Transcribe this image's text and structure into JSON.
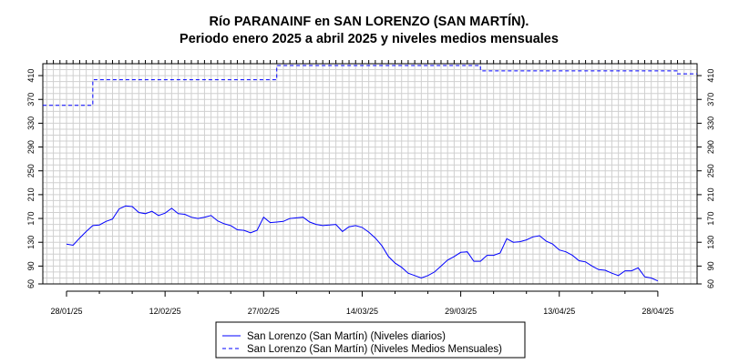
{
  "chart_data": {
    "type": "line",
    "title": "Río PARANAINF en SAN LORENZO (SAN MARTÍN).",
    "subtitle": "Periodo enero 2025 a abril 2025 y niveles medios mensuales",
    "xlabel": "",
    "ylabel": "",
    "x_tick_labels": [
      "28/01/25",
      "12/02/25",
      "27/02/25",
      "14/03/25",
      "29/03/25",
      "13/04/25",
      "28/04/25"
    ],
    "y_ticks": [
      60,
      90,
      130,
      170,
      210,
      250,
      290,
      330,
      370,
      410
    ],
    "ylim": [
      60,
      430
    ],
    "grid": true,
    "legend_position": "bottom-center",
    "series": [
      {
        "name": "San Lorenzo (San Martín) (Niveles diarios)",
        "style": "solid",
        "color": "#0000ff",
        "x": [
          0,
          1,
          2,
          3,
          4,
          5,
          6,
          7,
          8,
          9,
          10,
          11,
          12,
          13,
          14,
          15,
          16,
          17,
          18,
          19,
          20,
          21,
          22,
          23,
          24,
          25,
          26,
          27,
          28,
          29,
          30,
          31,
          32,
          33,
          34,
          35,
          36,
          37,
          38,
          39,
          40,
          41,
          42,
          43,
          44,
          45,
          46,
          47,
          48,
          49,
          50,
          51,
          52,
          53,
          54,
          55,
          56,
          57,
          58,
          59,
          60,
          61,
          62,
          63,
          64,
          65,
          66,
          67,
          68,
          69,
          70,
          71,
          72,
          73,
          74,
          75,
          76,
          77,
          78,
          79,
          80,
          81,
          82,
          83,
          84,
          85,
          86,
          87,
          88,
          89,
          90
        ],
        "values": [
          127,
          125,
          137,
          148,
          158,
          159,
          165,
          169,
          186,
          191,
          190,
          180,
          178,
          182,
          175,
          179,
          187,
          178,
          177,
          172,
          170,
          172,
          175,
          166,
          161,
          158,
          151,
          150,
          146,
          150,
          172,
          163,
          164,
          165,
          170,
          171,
          172,
          164,
          160,
          158,
          159,
          160,
          148,
          156,
          158,
          155,
          147,
          137,
          124,
          106,
          95,
          88,
          78,
          74,
          70,
          74,
          80,
          90,
          100,
          106,
          113,
          114,
          98,
          98,
          108,
          108,
          112,
          136,
          130,
          131,
          134,
          139,
          141,
          132,
          127,
          117,
          114,
          108,
          99,
          97,
          90,
          84,
          83,
          78,
          74,
          82,
          82,
          87,
          72,
          70,
          65
        ]
      },
      {
        "name": "San Lorenzo (San Martín) (Niveles Medios Mensuales)",
        "style": "dashed",
        "color": "#0000ff",
        "steps": [
          {
            "x_start": -4,
            "x_end": 4,
            "value": 360
          },
          {
            "x_start": 4,
            "x_end": 32,
            "value": 403
          },
          {
            "x_start": 32,
            "x_end": 63,
            "value": 427
          },
          {
            "x_start": 63,
            "x_end": 93,
            "value": 418
          },
          {
            "x_start": 93,
            "x_end": 96,
            "value": 413
          }
        ]
      }
    ]
  }
}
